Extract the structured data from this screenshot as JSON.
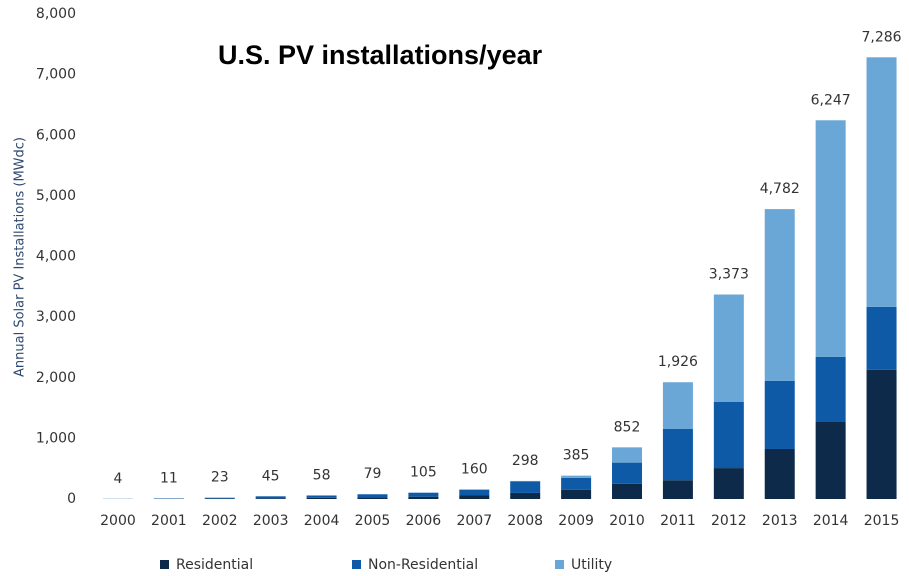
{
  "chart_data": {
    "type": "stacked_bar",
    "title": "U.S. PV installations/year",
    "y_label": "Annual Solar PV Installations (MWdc)",
    "categories": [
      "2000",
      "2001",
      "2002",
      "2003",
      "2004",
      "2005",
      "2006",
      "2007",
      "2008",
      "2009",
      "2010",
      "2011",
      "2012",
      "2013",
      "2014",
      "2015"
    ],
    "series": [
      {
        "name": "Residential",
        "color": "#0d2a4a",
        "values": [
          1,
          3,
          6,
          10,
          20,
          27,
          38,
          58,
          100,
          150,
          250,
          310,
          510,
          825,
          1270,
          2130
        ]
      },
      {
        "name": "Non-Residential",
        "color": "#0e5aa7",
        "values": [
          2,
          7,
          15,
          34,
          38,
          51,
          66,
          95,
          190,
          200,
          350,
          845,
          1090,
          1122,
          1073,
          1038
        ]
      },
      {
        "name": "Utility",
        "color": "#6aa7d6",
        "values": [
          1,
          1,
          2,
          1,
          0,
          1,
          1,
          7,
          8,
          35,
          252,
          771,
          1773,
          2835,
          3904,
          4118
        ]
      }
    ],
    "totals": [
      4,
      11,
      23,
      45,
      58,
      79,
      105,
      160,
      298,
      385,
      852,
      1926,
      3373,
      4782,
      6247,
      7286
    ],
    "total_labels": [
      "4",
      "11",
      "23",
      "45",
      "58",
      "79",
      "105",
      "160",
      "298",
      "385",
      "852",
      "1,926",
      "3,373",
      "4,782",
      "6,247",
      "7,286"
    ],
    "ylim": [
      0,
      8000
    ],
    "yticks": [
      0,
      {
        "value": 1000,
        "label": "1,000"
      },
      {
        "value": 2000,
        "label": "2,000"
      },
      {
        "value": 3000,
        "label": "3,000"
      },
      {
        "value": 4000,
        "label": "4,000"
      },
      {
        "value": 5000,
        "label": "5,000"
      },
      {
        "value": 6000,
        "label": "6,000"
      },
      {
        "value": 7000,
        "label": "7,000"
      },
      {
        "value": 8000,
        "label": "8,000"
      }
    ],
    "grid": false,
    "legend": "bottom"
  }
}
